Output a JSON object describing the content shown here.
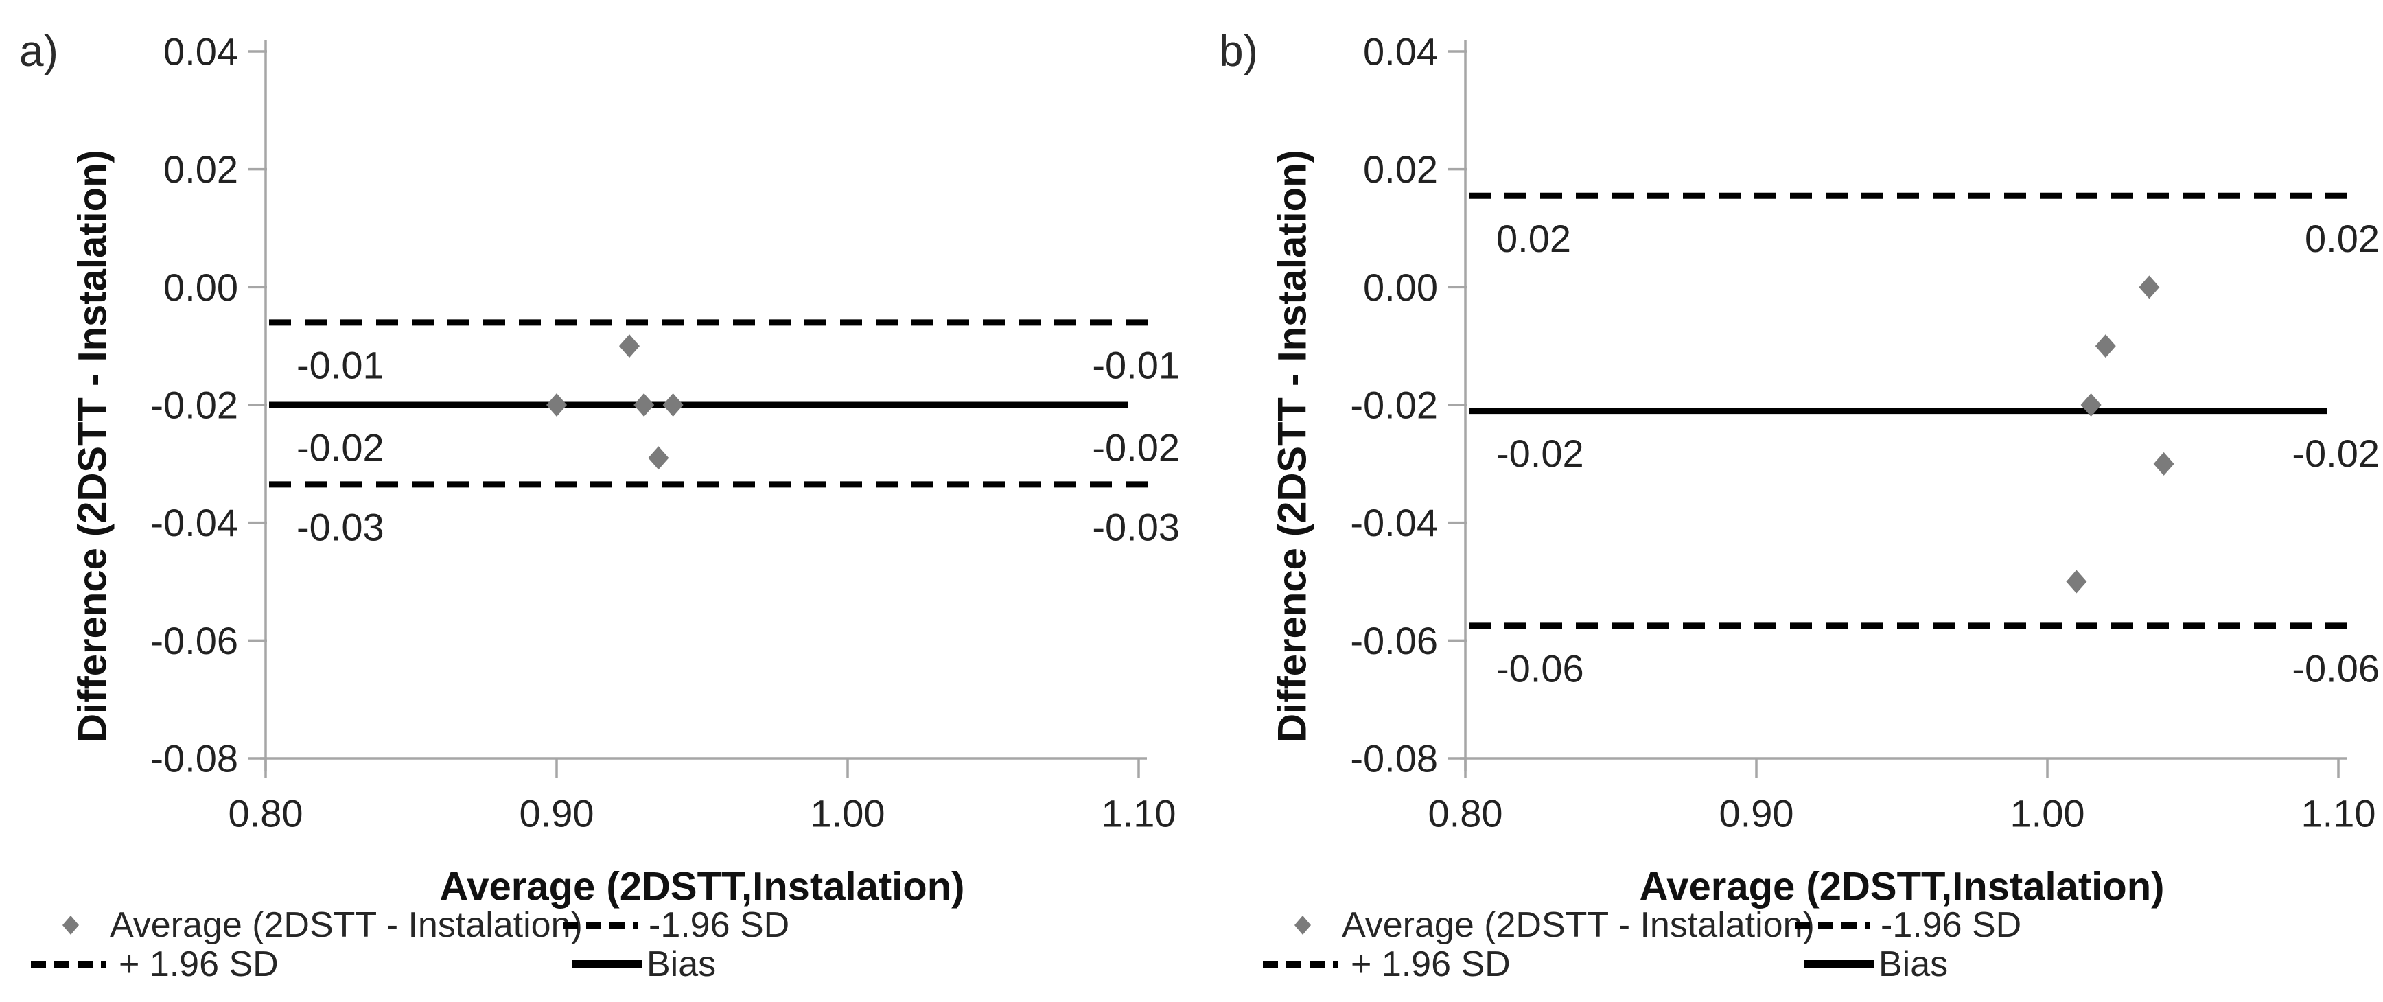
{
  "figure": {
    "background": "#ffffff",
    "description": "Two Bland-Altman agreement plots, panels a) and b)"
  },
  "chart_data": [
    {
      "type": "scatter",
      "panel_label": "a)",
      "title": "",
      "xlabel": "Average (2DSTT,Instalation)",
      "ylabel": "Difference (2DSTT - Instalation)",
      "xlim": [
        0.8,
        1.1
      ],
      "ylim": [
        -0.08,
        0.04
      ],
      "x_tick_values": [
        0.8,
        0.9,
        1.0,
        1.1
      ],
      "x_tick_labels": [
        "0.80",
        "0.90",
        "1.00",
        "1.10"
      ],
      "y_tick_values": [
        0.04,
        0.02,
        0.0,
        -0.02,
        -0.04,
        -0.06,
        -0.08
      ],
      "y_tick_labels": [
        "0.04",
        "0.02",
        "0.00",
        "-0.02",
        "-0.04",
        "-0.06",
        "-0.08"
      ],
      "grid": false,
      "series_name": "Average (2DSTT - Instalation)",
      "points": [
        {
          "x": 0.9,
          "y": -0.02
        },
        {
          "x": 0.925,
          "y": -0.01
        },
        {
          "x": 0.93,
          "y": -0.02
        },
        {
          "x": 0.94,
          "y": -0.02
        },
        {
          "x": 0.935,
          "y": -0.029
        }
      ],
      "ref_lines": [
        {
          "name": "+ 1.96 SD",
          "style": "dashed",
          "value": -0.006,
          "label_left": "-0.01",
          "label_right": "-0.01"
        },
        {
          "name": "Bias",
          "style": "solid",
          "value": -0.02,
          "label_left": "-0.02",
          "label_right": "-0.02"
        },
        {
          "name": "-1.96 SD",
          "style": "dashed",
          "value": -0.0335,
          "label_left": "-0.03",
          "label_right": "-0.03"
        }
      ],
      "legend": [
        {
          "marker": "diamond",
          "label": "Average (2DSTT - Instalation)"
        },
        {
          "marker": "dashed",
          "label": "-1.96 SD"
        },
        {
          "marker": "dashed",
          "label": "+ 1.96 SD"
        },
        {
          "marker": "solid",
          "label": "Bias"
        }
      ],
      "colors": {
        "marker": "#7b7b7b",
        "line": "#000000",
        "axis": "#a6a6a6",
        "text": "#1f1f1f"
      },
      "legend_position": "bottom-left"
    },
    {
      "type": "scatter",
      "panel_label": "b)",
      "title": "",
      "xlabel": "Average (2DSTT,Instalation)",
      "ylabel": "Difference (2DSTT - Instalation)",
      "xlim": [
        0.8,
        1.1
      ],
      "ylim": [
        -0.08,
        0.04
      ],
      "x_tick_values": [
        0.8,
        0.9,
        1.0,
        1.1
      ],
      "x_tick_labels": [
        "0.80",
        "0.90",
        "1.00",
        "1.10"
      ],
      "y_tick_values": [
        0.04,
        0.02,
        0.0,
        -0.02,
        -0.04,
        -0.06,
        -0.08
      ],
      "y_tick_labels": [
        "0.04",
        "0.02",
        "0.00",
        "-0.02",
        "-0.04",
        "-0.06",
        "-0.08"
      ],
      "grid": false,
      "series_name": "Average (2DSTT - Instalation)",
      "points": [
        {
          "x": 1.035,
          "y": 0.0
        },
        {
          "x": 1.02,
          "y": -0.01
        },
        {
          "x": 1.015,
          "y": -0.02
        },
        {
          "x": 1.04,
          "y": -0.03
        },
        {
          "x": 1.01,
          "y": -0.05
        }
      ],
      "ref_lines": [
        {
          "name": "+ 1.96 SD",
          "style": "dashed",
          "value": 0.0155,
          "label_left": "0.02",
          "label_right": "0.02"
        },
        {
          "name": "Bias",
          "style": "solid",
          "value": -0.021,
          "label_left": "-0.02",
          "label_right": "-0.02"
        },
        {
          "name": "-1.96 SD",
          "style": "dashed",
          "value": -0.0575,
          "label_left": "-0.06",
          "label_right": "-0.06"
        }
      ],
      "legend": [
        {
          "marker": "diamond",
          "label": "Average (2DSTT - Instalation)"
        },
        {
          "marker": "dashed",
          "label": "-1.96 SD"
        },
        {
          "marker": "dashed",
          "label": "+ 1.96 SD"
        },
        {
          "marker": "solid",
          "label": "Bias"
        }
      ],
      "colors": {
        "marker": "#7b7b7b",
        "line": "#000000",
        "axis": "#a6a6a6",
        "text": "#1f1f1f"
      },
      "legend_position": "bottom-left"
    }
  ]
}
